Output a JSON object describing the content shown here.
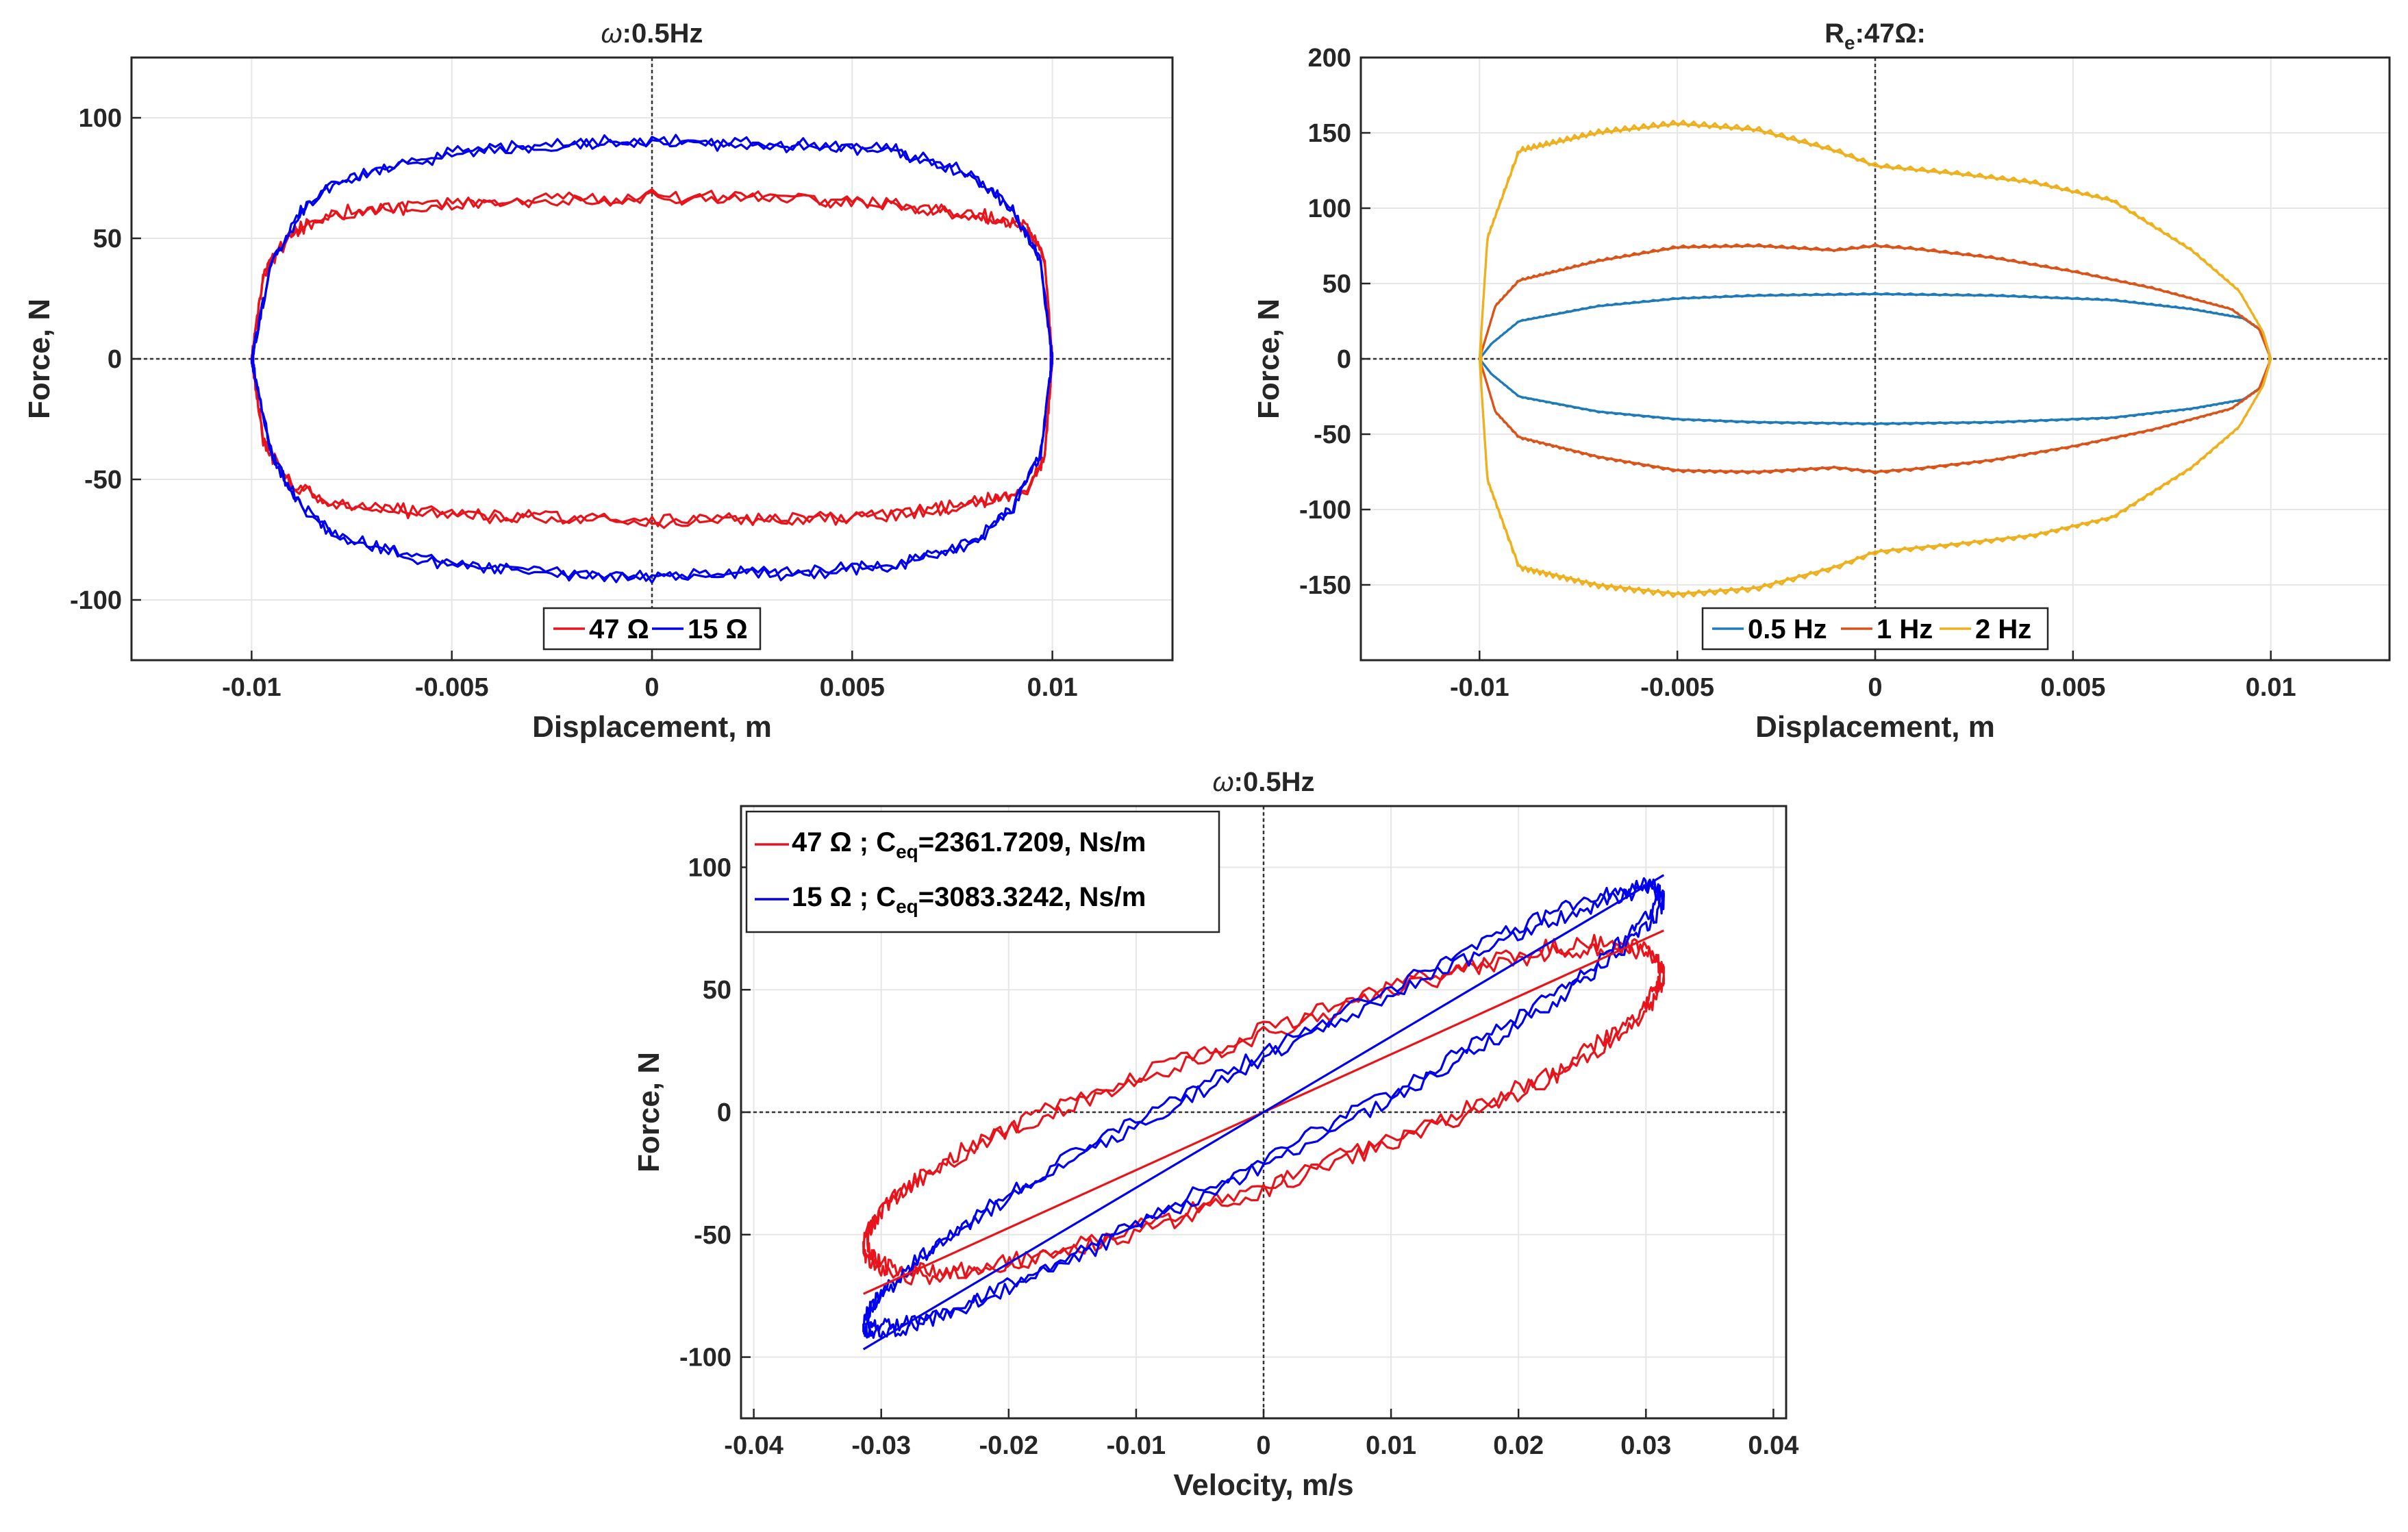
{
  "chart_data": [
    {
      "id": "p1",
      "type": "line",
      "title": "ω:0.5Hz",
      "xlabel": "Displacement, m",
      "ylabel": "Force, N",
      "xlim": [
        -0.013,
        0.013
      ],
      "ylim": [
        -125,
        125
      ],
      "xticks": [
        -0.01,
        -0.005,
        0,
        0.005,
        0.01
      ],
      "xtick_labels": [
        "-0.01",
        "-0.005",
        "0",
        "0.005",
        "0.01"
      ],
      "yticks": [
        -100,
        -50,
        0,
        50,
        100
      ],
      "ytick_labels": [
        "-100",
        "-50",
        "0",
        "50",
        "100"
      ],
      "grid": true,
      "legend_position": "bottom-center",
      "series": [
        {
          "name": "47 Ω",
          "color": "#e8141c",
          "kind": "loop",
          "amp": 0.01,
          "profile": [
            [
              -0.01,
              0
            ],
            [
              -0.0097,
              35
            ],
            [
              -0.009,
              52
            ],
            [
              -0.008,
              60
            ],
            [
              -0.006,
              63
            ],
            [
              -0.004,
              65
            ],
            [
              -0.002,
              66
            ],
            [
              0,
              67
            ],
            [
              0.002,
              67
            ],
            [
              0.004,
              66
            ],
            [
              0.006,
              64
            ],
            [
              0.008,
              60
            ],
            [
              0.0093,
              55
            ],
            [
              0.0098,
              42
            ],
            [
              0.01,
              0
            ]
          ],
          "noise": 2.5
        },
        {
          "name": "15 Ω",
          "color": "#0000ee",
          "kind": "loop",
          "amp": 0.01,
          "profile": [
            [
              -0.01,
              0
            ],
            [
              -0.0095,
              40
            ],
            [
              -0.0088,
              60
            ],
            [
              -0.008,
              72
            ],
            [
              -0.006,
              82
            ],
            [
              -0.004,
              87
            ],
            [
              -0.002,
              89
            ],
            [
              0,
              90
            ],
            [
              0.002,
              89
            ],
            [
              0.004,
              88
            ],
            [
              0.006,
              86
            ],
            [
              0.008,
              76
            ],
            [
              0.009,
              62
            ],
            [
              0.0097,
              40
            ],
            [
              0.01,
              0
            ]
          ],
          "noise": 2.2
        }
      ]
    },
    {
      "id": "p2",
      "type": "line",
      "title_main": "R",
      "title_sub": "e",
      "title_rest": ":47Ω:",
      "xlabel": "Displacement, m",
      "ylabel": "Force, N",
      "xlim": [
        -0.013,
        0.013
      ],
      "ylim": [
        -200,
        200
      ],
      "xticks": [
        -0.01,
        -0.005,
        0,
        0.005,
        0.01
      ],
      "xtick_labels": [
        "-0.01",
        "-0.005",
        "0",
        "0.005",
        "0.01"
      ],
      "yticks": [
        -150,
        -100,
        -50,
        0,
        50,
        100,
        150,
        200
      ],
      "ytick_labels": [
        "-150",
        "-100",
        "-50",
        "0",
        "50",
        "100",
        "150",
        "200"
      ],
      "grid": true,
      "legend_position": "bottom-center",
      "series": [
        {
          "name": "0.5 Hz",
          "color": "#1f7ab8",
          "kind": "loop",
          "amp": 0.01,
          "profile": [
            [
              -0.01,
              0
            ],
            [
              -0.0097,
              10
            ],
            [
              -0.009,
              25
            ],
            [
              -0.007,
              35
            ],
            [
              -0.005,
              40
            ],
            [
              -0.003,
              42
            ],
            [
              0,
              43
            ],
            [
              0.003,
              42
            ],
            [
              0.006,
              39
            ],
            [
              0.008,
              33
            ],
            [
              0.0093,
              27
            ],
            [
              0.0098,
              18
            ],
            [
              0.01,
              0
            ]
          ],
          "noise": 0
        },
        {
          "name": "1 Hz",
          "color": "#d9541a",
          "kind": "loop",
          "amp": 0.01,
          "profile": [
            [
              -0.01,
              0
            ],
            [
              -0.0096,
              35
            ],
            [
              -0.009,
              52
            ],
            [
              -0.007,
              65
            ],
            [
              -0.005,
              74
            ],
            [
              -0.003,
              75
            ],
            [
              -0.001,
              72
            ],
            [
              0,
              75
            ],
            [
              0.001,
              73
            ],
            [
              0.003,
              67
            ],
            [
              0.005,
              58
            ],
            [
              0.007,
              47
            ],
            [
              0.009,
              33
            ],
            [
              0.0097,
              20
            ],
            [
              0.01,
              0
            ]
          ],
          "noise": 0
        },
        {
          "name": "2 Hz",
          "color": "#edb120",
          "kind": "loop",
          "amp": 0.01,
          "profile": [
            [
              -0.01,
              0
            ],
            [
              -0.0098,
              80
            ],
            [
              -0.009,
              138
            ],
            [
              -0.007,
              150
            ],
            [
              -0.005,
              156
            ],
            [
              -0.003,
              152
            ],
            [
              -0.001,
              138
            ],
            [
              0,
              128
            ],
            [
              0.002,
              123
            ],
            [
              0.004,
              117
            ],
            [
              0.006,
              105
            ],
            [
              0.008,
              72
            ],
            [
              0.0092,
              45
            ],
            [
              0.0098,
              18
            ],
            [
              0.01,
              0
            ]
          ],
          "noise": 0
        }
      ]
    },
    {
      "id": "p3",
      "type": "line",
      "title": "ω:0.5Hz",
      "xlabel": "Velocity, m/s",
      "ylabel": "Force, N",
      "xlim": [
        -0.041,
        0.041
      ],
      "ylim": [
        -125,
        125
      ],
      "xticks": [
        -0.04,
        -0.03,
        -0.02,
        -0.01,
        0,
        0.01,
        0.02,
        0.03,
        0.04
      ],
      "xtick_labels": [
        "-0.04",
        "-0.03",
        "-0.02",
        "-0.01",
        "0",
        "0.01",
        "0.02",
        "0.03",
        "0.04"
      ],
      "yticks": [
        -100,
        -50,
        0,
        50,
        100
      ],
      "ytick_labels": [
        "-100",
        "-50",
        "0",
        "50",
        "100"
      ],
      "grid": true,
      "legend_position": "top-left",
      "legend": [
        {
          "name": "47 Ω ; C",
          "sub": "eq",
          "rest": "=2361.7209, Ns/m",
          "color": "#e8141c"
        },
        {
          "name": "15 Ω ; C",
          "sub": "eq",
          "rest": "=3083.3242, Ns/m",
          "color": "#0000ee"
        }
      ],
      "series": [
        {
          "name": "47 Ω",
          "color": "#e8141c",
          "kind": "vloop",
          "vmax": 0.0314,
          "scale": 67,
          "shape": 0.8,
          "phase": 0.55,
          "noise": 3.5
        },
        {
          "name": "15 Ω",
          "color": "#0000ee",
          "kind": "vloop",
          "vmax": 0.0314,
          "scale": 90,
          "shape": 0.35,
          "phase": 0.26,
          "noise": 3.0
        },
        {
          "name": "47 Ω fit",
          "color": "#e8141c",
          "kind": "line",
          "x": [
            -0.0314,
            0.0314
          ],
          "y": [
            -74.2,
            74.2
          ],
          "noise": 0
        },
        {
          "name": "15 Ω fit",
          "color": "#0000ee",
          "kind": "line",
          "x": [
            -0.0314,
            0.0314
          ],
          "y": [
            -96.8,
            96.8
          ],
          "noise": 0
        }
      ]
    }
  ]
}
